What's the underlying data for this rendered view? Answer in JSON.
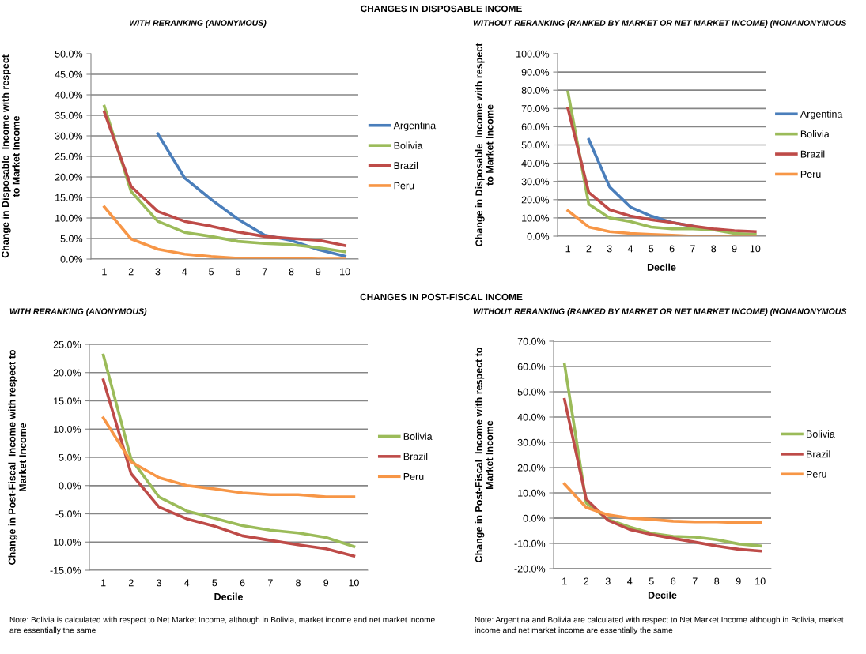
{
  "chart_data": [
    {
      "type": "line",
      "title": "CHANGES IN DISPOSABLE INCOME",
      "subtitle": "WITH RERANKING (ANONYMOUS)",
      "ylabel": "Change in Disposable  Income with respect\nto Market Income",
      "categories": [
        "1",
        "2",
        "3",
        "4",
        "5",
        "6",
        "7",
        "8",
        "9",
        "10"
      ],
      "series": [
        {
          "name": "Argentina",
          "color": "#4a7ebb",
          "values": [
            null,
            null,
            30.5,
            19.8,
            14.5,
            9.7,
            5.8,
            4.5,
            2.3,
            0.7
          ]
        },
        {
          "name": "Bolivia",
          "color": "#9bbb59",
          "values": [
            37.2,
            16.5,
            9.2,
            6.5,
            5.5,
            4.3,
            3.8,
            3.5,
            2.8,
            1.8
          ]
        },
        {
          "name": "Brazil",
          "color": "#be4b48",
          "values": [
            35.8,
            17.7,
            11.6,
            9.2,
            8.0,
            6.6,
            5.5,
            5.0,
            4.6,
            3.3
          ]
        },
        {
          "name": "Peru",
          "color": "#f79646",
          "values": [
            12.7,
            4.9,
            2.4,
            1.2,
            0.6,
            0.2,
            0.2,
            0.2,
            0.0,
            0.0
          ]
        }
      ],
      "ylim": [
        0,
        50
      ],
      "yticks": [
        {
          "value": 0,
          "label": "0.0%"
        },
        {
          "value": 5,
          "label": "5.0%"
        },
        {
          "value": 10,
          "label": "10.0%"
        },
        {
          "value": 15,
          "label": "15.0%"
        },
        {
          "value": 20,
          "label": "20.0%"
        },
        {
          "value": 25,
          "label": "25.0%"
        },
        {
          "value": 30,
          "label": "30.0%"
        },
        {
          "value": 35,
          "label": "35.0%"
        },
        {
          "value": 40,
          "label": "40.0%"
        },
        {
          "value": 45,
          "label": "45.0%"
        },
        {
          "value": 50,
          "label": "50.0%"
        }
      ],
      "grid": "y",
      "legend": "right",
      "marker": "none",
      "line_style": "solid"
    },
    {
      "type": "line",
      "subtitle": "WITHOUT RERANKING (RANKED BY MARKET OR NET MARKET INCOME) (NONANONYMOUS",
      "xlabel": "Decile",
      "ylabel": "Change in Disposable  Income with respect\nto Market Income",
      "categories": [
        "1",
        "2",
        "3",
        "4",
        "5",
        "6",
        "7",
        "8",
        "9",
        "10"
      ],
      "series": [
        {
          "name": "Argentina",
          "color": "#4a7ebb",
          "values": [
            null,
            53,
            27,
            16,
            11,
            7.5,
            5.5,
            null,
            null,
            null
          ]
        },
        {
          "name": "Bolivia",
          "color": "#9bbb59",
          "values": [
            79,
            17.5,
            10,
            8,
            5,
            4,
            4,
            3.5,
            1.5,
            1
          ]
        },
        {
          "name": "Brazil",
          "color": "#be4b48",
          "values": [
            70,
            24,
            14.5,
            11,
            9,
            7.5,
            5.5,
            4,
            3,
            2.5
          ]
        },
        {
          "name": "Peru",
          "color": "#f79646",
          "values": [
            14,
            5,
            2.5,
            1.5,
            1,
            0.5,
            0,
            0,
            0,
            0
          ]
        }
      ],
      "ylim": [
        0,
        100
      ],
      "yticks": [
        {
          "value": 0,
          "label": "0.0%"
        },
        {
          "value": 10,
          "label": "10.0%"
        },
        {
          "value": 20,
          "label": "20.0%"
        },
        {
          "value": 30,
          "label": "30.0%"
        },
        {
          "value": 40,
          "label": "40.0%"
        },
        {
          "value": 50,
          "label": "50.0%"
        },
        {
          "value": 60,
          "label": "60.0%"
        },
        {
          "value": 70,
          "label": "70.0%"
        },
        {
          "value": 80,
          "label": "80.0%"
        },
        {
          "value": 90,
          "label": "90.0%"
        },
        {
          "value": 100,
          "label": "100.0%"
        }
      ],
      "grid": "y",
      "legend": "right",
      "marker": "none",
      "line_style": "solid"
    },
    {
      "type": "line",
      "title": "CHANGES IN POST-FISCAL INCOME",
      "subtitle": "WITH RERANKING (ANONYMOUS)",
      "xlabel": "Decile",
      "ylabel": "Change in Post-Fiscal  Income with respect to\nMarket Income",
      "categories": [
        "1",
        "2",
        "3",
        "4",
        "5",
        "6",
        "7",
        "8",
        "9",
        "10"
      ],
      "series": [
        {
          "name": "Bolivia",
          "color": "#9bbb59",
          "values": [
            23.1,
            4.7,
            -2.0,
            -4.5,
            -5.8,
            -7.1,
            -7.9,
            -8.4,
            -9.2,
            -10.8
          ]
        },
        {
          "name": "Brazil",
          "color": "#be4b48",
          "values": [
            18.7,
            2.1,
            -3.8,
            -5.9,
            -7.2,
            -8.9,
            -9.7,
            -10.5,
            -11.2,
            -12.5
          ]
        },
        {
          "name": "Peru",
          "color": "#f79646",
          "values": [
            12.0,
            4.2,
            1.4,
            0.0,
            -0.6,
            -1.3,
            -1.6,
            -1.6,
            -2.0,
            -2.0
          ]
        }
      ],
      "ylim": [
        -15,
        25
      ],
      "yticks": [
        {
          "value": -15,
          "label": "-15.0%"
        },
        {
          "value": -10,
          "label": "-10.0%"
        },
        {
          "value": -5,
          "label": "-5.0%"
        },
        {
          "value": 0,
          "label": "0.0%"
        },
        {
          "value": 5,
          "label": "5.0%"
        },
        {
          "value": 10,
          "label": "10.0%"
        },
        {
          "value": 15,
          "label": "15.0%"
        },
        {
          "value": 20,
          "label": "20.0%"
        },
        {
          "value": 25,
          "label": "25.0%"
        }
      ],
      "grid": "y",
      "legend": "right",
      "marker": "none",
      "line_style": "solid",
      "annotations": [
        "Note: Bolivia is calculated with respect to Net Market Income, although in Bolivia, market income and net market income\nare essentially the same"
      ]
    },
    {
      "type": "line",
      "subtitle": "WITHOUT RERANKING (RANKED BY MARKET OR NET MARKET INCOME) (NONANONYMOUS",
      "xlabel": "Decile",
      "ylabel": "Change in Post-Fiscal  Income with respect to\nMarket Income",
      "categories": [
        "1",
        "2",
        "3",
        "4",
        "5",
        "6",
        "7",
        "8",
        "9",
        "10"
      ],
      "series": [
        {
          "name": "Bolivia",
          "color": "#9bbb59",
          "values": [
            61,
            6,
            -0.5,
            -3.5,
            -6,
            -7.2,
            -7.5,
            -8.5,
            -10.2,
            -11
          ]
        },
        {
          "name": "Brazil",
          "color": "#be4b48",
          "values": [
            47,
            7.5,
            -0.8,
            -4.5,
            -6.5,
            -8,
            -9.5,
            -11,
            -12.3,
            -13
          ]
        },
        {
          "name": "Peru",
          "color": "#f79646",
          "values": [
            13.5,
            4.2,
            1.3,
            0,
            -0.5,
            -1.2,
            -1.5,
            -1.5,
            -1.8,
            -1.8
          ]
        }
      ],
      "ylim": [
        -20,
        70
      ],
      "yticks": [
        {
          "value": -20,
          "label": "-20.0%"
        },
        {
          "value": -10,
          "label": "-10.0%"
        },
        {
          "value": 0,
          "label": "0.0%"
        },
        {
          "value": 10,
          "label": "10.0%"
        },
        {
          "value": 20,
          "label": "20.0%"
        },
        {
          "value": 30,
          "label": "30.0%"
        },
        {
          "value": 40,
          "label": "40.0%"
        },
        {
          "value": 50,
          "label": "50.0%"
        },
        {
          "value": 60,
          "label": "60.0%"
        },
        {
          "value": 70,
          "label": "70.0%"
        }
      ],
      "grid": "y",
      "legend": "right",
      "marker": "none",
      "line_style": "solid",
      "annotations": [
        "Note: Argentina and Bolivia are calculated with respect to Net Market Income although in Bolivia, market\nincome and net market income are essentially the same"
      ]
    }
  ]
}
